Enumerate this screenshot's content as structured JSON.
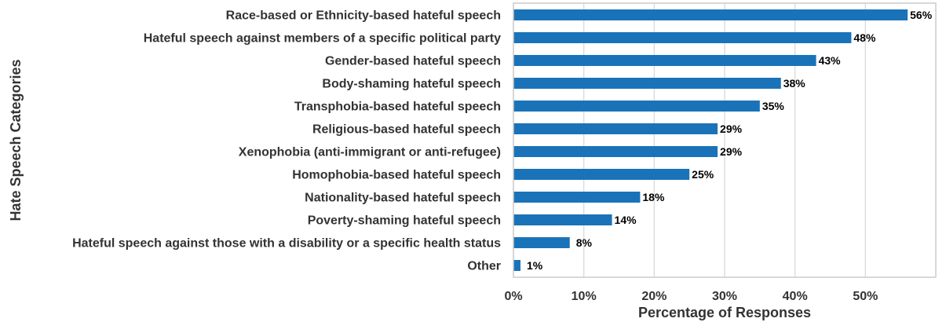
{
  "chart_data": {
    "type": "bar",
    "orientation": "horizontal",
    "categories": [
      "Race-based or Ethnicity-based hateful speech",
      "Hateful speech against members of a specific political party",
      "Gender-based hateful speech",
      "Body-shaming hateful speech",
      "Transphobia-based hateful speech",
      "Religious-based hateful speech",
      "Xenophobia (anti-immigrant or anti-refugee)",
      "Homophobia-based hateful speech",
      "Nationality-based hateful speech",
      "Poverty-shaming hateful speech",
      "Hateful speech against those with a disability or a specific health status",
      "Other"
    ],
    "values": [
      56,
      48,
      43,
      38,
      35,
      29,
      29,
      25,
      18,
      14,
      8,
      1
    ],
    "data_labels": [
      "56%",
      "48%",
      "43%",
      "38%",
      "35%",
      "29%",
      "29%",
      "25%",
      "18%",
      "14%",
      "8%",
      "1%"
    ],
    "xlabel": "Percentage of Responses",
    "ylabel": "Hate Speech Categories",
    "xlim": [
      0,
      60
    ],
    "xticks": [
      0,
      10,
      20,
      30,
      40,
      50
    ],
    "xtick_labels": [
      "0%",
      "10%",
      "20%",
      "30%",
      "40%",
      "50%"
    ],
    "grid": true,
    "bar_color": "#1a73b8",
    "grid_color": "#d9d9d9",
    "frame_color": "#cccccc",
    "text_color": "#333333"
  }
}
